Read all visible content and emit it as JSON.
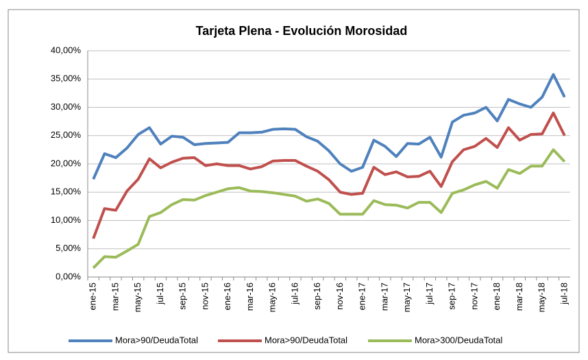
{
  "chart_data": {
    "type": "line",
    "title": "Tarjeta Plena - Evolución Morosidad",
    "categories": [
      "ene-15",
      null,
      "mar-15",
      null,
      "may-15",
      null,
      "jul-15",
      null,
      "sep-15",
      null,
      "nov-15",
      null,
      "ene-16",
      null,
      "mar-16",
      null,
      "may-16",
      null,
      "jul-16",
      null,
      "sep-16",
      null,
      "nov-16",
      null,
      "ene-17",
      null,
      "mar-17",
      null,
      "may-17",
      null,
      "jul-17",
      null,
      "sep-17",
      null,
      "nov-17",
      null,
      "ene-18",
      null,
      "mar-18",
      null,
      "may-18",
      null,
      "jul-18"
    ],
    "series": [
      {
        "name": "Mora>90/DeudaTotal",
        "color": "#4f81bd",
        "values": [
          17.3,
          21.8,
          21.1,
          22.8,
          25.2,
          26.4,
          23.5,
          24.9,
          24.7,
          23.4,
          23.6,
          23.7,
          23.8,
          25.5,
          25.5,
          25.6,
          26.1,
          26.2,
          26.1,
          24.8,
          24.0,
          22.3,
          20.0,
          18.7,
          19.4,
          24.2,
          23.1,
          21.3,
          23.6,
          23.5,
          24.7,
          21.2,
          27.4,
          28.6,
          29.0,
          30.0,
          27.6,
          31.4,
          30.6,
          30.0,
          31.8,
          35.8,
          31.8
        ]
      },
      {
        "name": "Mora>90/DeudaTotal",
        "color": "#c0504d",
        "values": [
          6.8,
          12.1,
          11.8,
          15.2,
          17.3,
          20.9,
          19.3,
          20.3,
          21.0,
          21.1,
          19.7,
          20.0,
          19.7,
          19.7,
          19.1,
          19.5,
          20.5,
          20.6,
          20.6,
          19.6,
          18.7,
          17.2,
          15.0,
          14.6,
          14.8,
          19.4,
          18.1,
          18.6,
          17.7,
          17.8,
          18.7,
          16.0,
          20.4,
          22.5,
          23.1,
          24.5,
          22.9,
          26.4,
          24.2,
          25.2,
          25.3,
          29.0,
          25.0
        ]
      },
      {
        "name": "Mora>300/DeudaTotal",
        "color": "#9bbb59",
        "values": [
          1.6,
          3.6,
          3.5,
          4.6,
          5.8,
          10.7,
          11.4,
          12.8,
          13.7,
          13.6,
          14.4,
          15.0,
          15.6,
          15.8,
          15.2,
          15.1,
          14.9,
          14.6,
          14.3,
          13.4,
          13.8,
          13.0,
          11.1,
          11.1,
          11.1,
          13.5,
          12.8,
          12.7,
          12.2,
          13.2,
          13.2,
          11.4,
          14.8,
          15.4,
          16.3,
          16.9,
          15.7,
          19.0,
          18.3,
          19.6,
          19.6,
          22.5,
          20.4
        ]
      }
    ],
    "ylim": [
      0,
      40
    ],
    "yticks": [
      {
        "value": 0,
        "label": "0,00%"
      },
      {
        "value": 5,
        "label": "5,00%"
      },
      {
        "value": 10,
        "label": "10,00%"
      },
      {
        "value": 15,
        "label": "15,00%"
      },
      {
        "value": 20,
        "label": "20,00%"
      },
      {
        "value": 25,
        "label": "25,00%"
      },
      {
        "value": 30,
        "label": "30,00%"
      },
      {
        "value": 35,
        "label": "35,00%"
      },
      {
        "value": 40,
        "label": "40,00%"
      }
    ],
    "grid": true,
    "legend": "bottom"
  }
}
